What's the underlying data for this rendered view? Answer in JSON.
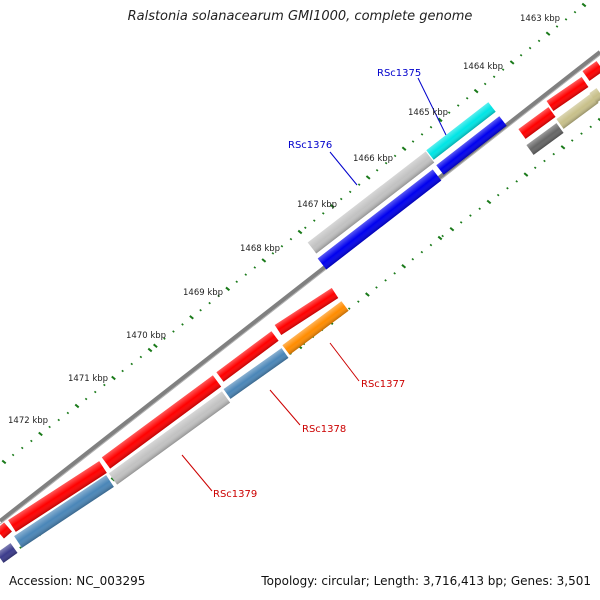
{
  "header": {
    "title": "Ralstonia solanacearum GMI1000, complete genome"
  },
  "footer": {
    "accession": "Accession: NC_003295",
    "stats": "Topology: circular; Length: 3,716,413 bp; Genes: 3,501"
  },
  "map": {
    "unit": "kbp",
    "tick_labels": [
      {
        "kbp": 1463,
        "text": "1463 kbp"
      },
      {
        "kbp": 1464,
        "text": "1464 kbp"
      },
      {
        "kbp": 1465,
        "text": "1465 kbp"
      },
      {
        "kbp": 1466,
        "text": "1466 kbp"
      },
      {
        "kbp": 1467,
        "text": "1467 kbp"
      },
      {
        "kbp": 1468,
        "text": "1468 kbp"
      },
      {
        "kbp": 1469,
        "text": "1469 kbp"
      },
      {
        "kbp": 1470,
        "text": "1470 kbp"
      },
      {
        "kbp": 1471,
        "text": "1471 kbp"
      },
      {
        "kbp": 1472,
        "text": "1472 kbp"
      }
    ],
    "gene_labels": [
      {
        "text": "RSc1375",
        "color": "#0000cc"
      },
      {
        "text": "RSc1376",
        "color": "#0000cc"
      },
      {
        "text": "RSc1377",
        "color": "#cc0000"
      },
      {
        "text": "RSc1378",
        "color": "#cc0000"
      },
      {
        "text": "RSc1379",
        "color": "#cc0000"
      }
    ],
    "colors": {
      "backbone": "#808080",
      "tick": "#1a7a1a",
      "red_gene": "#ff0000",
      "blue_gene": "#0000ee",
      "cyan_gene": "#00e5e5",
      "grey_gene": "#c2c2c2",
      "steel_gene": "#4a86b8",
      "orange_gene": "#ff8c00",
      "olive_gene": "#c8c08a",
      "dark_gene": "#666666",
      "navy_gene": "#3b3b8c"
    }
  }
}
